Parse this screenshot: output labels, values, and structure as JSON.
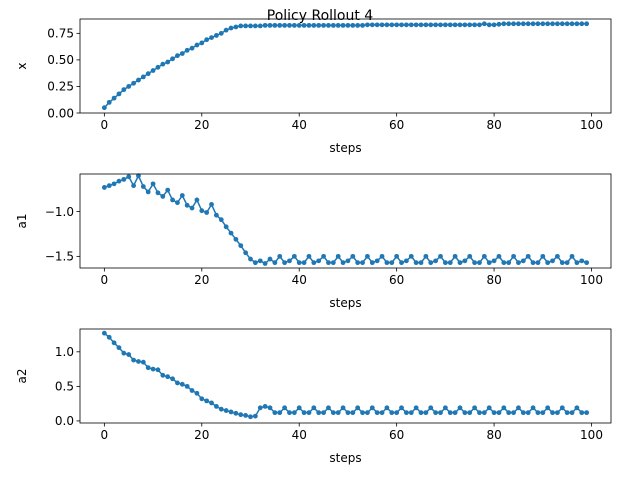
{
  "figure": {
    "title": "Policy Rollout 4"
  },
  "style": {
    "series_color": "#1f77b4",
    "axis_color": "#000000",
    "background": "#ffffff"
  },
  "chart_data": [
    {
      "type": "line",
      "marker": "dot",
      "xlabel": "steps",
      "ylabel": "x",
      "xlim": [
        -5,
        104
      ],
      "ylim": [
        0.0,
        0.885
      ],
      "xticks": [
        0,
        20,
        40,
        60,
        80,
        100
      ],
      "xtick_labels": [
        "0",
        "20",
        "40",
        "60",
        "80",
        "100"
      ],
      "yticks": [
        0.0,
        0.25,
        0.5,
        0.75
      ],
      "ytick_labels": [
        "0.00",
        "0.25",
        "0.50",
        "0.75"
      ],
      "grid": false,
      "x": [
        0,
        1,
        2,
        3,
        4,
        5,
        6,
        7,
        8,
        9,
        10,
        11,
        12,
        13,
        14,
        15,
        16,
        17,
        18,
        19,
        20,
        21,
        22,
        23,
        24,
        25,
        26,
        27,
        28,
        29,
        30,
        31,
        32,
        33,
        34,
        35,
        36,
        37,
        38,
        39,
        40,
        41,
        42,
        43,
        44,
        45,
        46,
        47,
        48,
        49,
        50,
        51,
        52,
        53,
        54,
        55,
        56,
        57,
        58,
        59,
        60,
        61,
        62,
        63,
        64,
        65,
        66,
        67,
        68,
        69,
        70,
        71,
        72,
        73,
        74,
        75,
        76,
        77,
        78,
        79,
        80,
        81,
        82,
        83,
        84,
        85,
        86,
        87,
        88,
        89,
        90,
        91,
        92,
        93,
        94,
        95,
        96,
        97,
        98,
        99
      ],
      "y": [
        0.05,
        0.1,
        0.14,
        0.18,
        0.22,
        0.25,
        0.28,
        0.31,
        0.34,
        0.37,
        0.4,
        0.43,
        0.46,
        0.48,
        0.51,
        0.54,
        0.56,
        0.59,
        0.61,
        0.64,
        0.66,
        0.69,
        0.71,
        0.73,
        0.75,
        0.78,
        0.8,
        0.81,
        0.82,
        0.82,
        0.82,
        0.82,
        0.82,
        0.825,
        0.825,
        0.825,
        0.825,
        0.825,
        0.825,
        0.825,
        0.825,
        0.825,
        0.825,
        0.825,
        0.825,
        0.825,
        0.825,
        0.825,
        0.825,
        0.825,
        0.825,
        0.825,
        0.825,
        0.825,
        0.83,
        0.83,
        0.83,
        0.83,
        0.83,
        0.83,
        0.83,
        0.83,
        0.83,
        0.83,
        0.83,
        0.83,
        0.83,
        0.83,
        0.83,
        0.83,
        0.83,
        0.83,
        0.83,
        0.83,
        0.83,
        0.83,
        0.83,
        0.83,
        0.84,
        0.83,
        0.83,
        0.835,
        0.84,
        0.84,
        0.84,
        0.84,
        0.84,
        0.84,
        0.84,
        0.84,
        0.84,
        0.84,
        0.84,
        0.84,
        0.84,
        0.84,
        0.84,
        0.84,
        0.84,
        0.84
      ]
    },
    {
      "type": "line",
      "marker": "dot",
      "xlabel": "steps",
      "ylabel": "a1",
      "xlim": [
        -5,
        104
      ],
      "ylim": [
        -1.63,
        -0.58
      ],
      "xticks": [
        0,
        20,
        40,
        60,
        80,
        100
      ],
      "xtick_labels": [
        "0",
        "20",
        "40",
        "60",
        "80",
        "100"
      ],
      "yticks": [
        -1.5,
        -1.0
      ],
      "ytick_labels": [
        "−1.5",
        "−1.0"
      ],
      "grid": false,
      "x": [
        0,
        1,
        2,
        3,
        4,
        5,
        6,
        7,
        8,
        9,
        10,
        11,
        12,
        13,
        14,
        15,
        16,
        17,
        18,
        19,
        20,
        21,
        22,
        23,
        24,
        25,
        26,
        27,
        28,
        29,
        30,
        31,
        32,
        33,
        34,
        35,
        36,
        37,
        38,
        39,
        40,
        41,
        42,
        43,
        44,
        45,
        46,
        47,
        48,
        49,
        50,
        51,
        52,
        53,
        54,
        55,
        56,
        57,
        58,
        59,
        60,
        61,
        62,
        63,
        64,
        65,
        66,
        67,
        68,
        69,
        70,
        71,
        72,
        73,
        74,
        75,
        76,
        77,
        78,
        79,
        80,
        81,
        82,
        83,
        84,
        85,
        86,
        87,
        88,
        89,
        90,
        91,
        92,
        93,
        94,
        95,
        96,
        97,
        98,
        99
      ],
      "y": [
        -0.73,
        -0.71,
        -0.69,
        -0.66,
        -0.64,
        -0.61,
        -0.71,
        -0.6,
        -0.72,
        -0.78,
        -0.69,
        -0.79,
        -0.83,
        -0.76,
        -0.87,
        -0.9,
        -0.82,
        -0.93,
        -0.96,
        -0.87,
        -0.99,
        -1.01,
        -0.92,
        -1.04,
        -1.09,
        -1.17,
        -1.24,
        -1.31,
        -1.38,
        -1.46,
        -1.53,
        -1.57,
        -1.55,
        -1.58,
        -1.53,
        -1.57,
        -1.5,
        -1.57,
        -1.55,
        -1.5,
        -1.57,
        -1.57,
        -1.5,
        -1.57,
        -1.55,
        -1.5,
        -1.57,
        -1.57,
        -1.5,
        -1.57,
        -1.55,
        -1.5,
        -1.57,
        -1.57,
        -1.5,
        -1.57,
        -1.55,
        -1.5,
        -1.57,
        -1.57,
        -1.5,
        -1.57,
        -1.55,
        -1.5,
        -1.57,
        -1.57,
        -1.5,
        -1.57,
        -1.55,
        -1.5,
        -1.57,
        -1.57,
        -1.5,
        -1.57,
        -1.55,
        -1.5,
        -1.57,
        -1.57,
        -1.5,
        -1.57,
        -1.55,
        -1.5,
        -1.57,
        -1.57,
        -1.5,
        -1.57,
        -1.55,
        -1.5,
        -1.57,
        -1.57,
        -1.5,
        -1.57,
        -1.55,
        -1.5,
        -1.57,
        -1.57,
        -1.5,
        -1.57,
        -1.55,
        -1.57
      ]
    },
    {
      "type": "line",
      "marker": "dot",
      "xlabel": "steps",
      "ylabel": "a2",
      "xlim": [
        -5,
        104
      ],
      "ylim": [
        -0.03,
        1.33
      ],
      "xticks": [
        0,
        20,
        40,
        60,
        80,
        100
      ],
      "xtick_labels": [
        "0",
        "20",
        "40",
        "60",
        "80",
        "100"
      ],
      "yticks": [
        0.0,
        0.5,
        1.0
      ],
      "ytick_labels": [
        "0.0",
        "0.5",
        "1.0"
      ],
      "grid": false,
      "x": [
        0,
        1,
        2,
        3,
        4,
        5,
        6,
        7,
        8,
        9,
        10,
        11,
        12,
        13,
        14,
        15,
        16,
        17,
        18,
        19,
        20,
        21,
        22,
        23,
        24,
        25,
        26,
        27,
        28,
        29,
        30,
        31,
        32,
        33,
        34,
        35,
        36,
        37,
        38,
        39,
        40,
        41,
        42,
        43,
        44,
        45,
        46,
        47,
        48,
        49,
        50,
        51,
        52,
        53,
        54,
        55,
        56,
        57,
        58,
        59,
        60,
        61,
        62,
        63,
        64,
        65,
        66,
        67,
        68,
        69,
        70,
        71,
        72,
        73,
        74,
        75,
        76,
        77,
        78,
        79,
        80,
        81,
        82,
        83,
        84,
        85,
        86,
        87,
        88,
        89,
        90,
        91,
        92,
        93,
        94,
        95,
        96,
        97,
        98,
        99
      ],
      "y": [
        1.27,
        1.21,
        1.13,
        1.06,
        0.98,
        0.96,
        0.88,
        0.86,
        0.85,
        0.77,
        0.75,
        0.74,
        0.66,
        0.64,
        0.61,
        0.55,
        0.53,
        0.5,
        0.44,
        0.4,
        0.32,
        0.29,
        0.26,
        0.21,
        0.17,
        0.15,
        0.13,
        0.11,
        0.09,
        0.08,
        0.06,
        0.07,
        0.19,
        0.21,
        0.19,
        0.12,
        0.12,
        0.19,
        0.12,
        0.12,
        0.19,
        0.12,
        0.12,
        0.19,
        0.12,
        0.12,
        0.19,
        0.12,
        0.12,
        0.19,
        0.12,
        0.12,
        0.19,
        0.12,
        0.12,
        0.19,
        0.12,
        0.12,
        0.19,
        0.12,
        0.12,
        0.19,
        0.12,
        0.12,
        0.19,
        0.12,
        0.12,
        0.19,
        0.12,
        0.12,
        0.19,
        0.12,
        0.12,
        0.19,
        0.12,
        0.12,
        0.19,
        0.12,
        0.12,
        0.19,
        0.12,
        0.12,
        0.19,
        0.12,
        0.12,
        0.19,
        0.12,
        0.12,
        0.19,
        0.12,
        0.12,
        0.19,
        0.12,
        0.12,
        0.19,
        0.12,
        0.12,
        0.19,
        0.12,
        0.12
      ]
    }
  ]
}
